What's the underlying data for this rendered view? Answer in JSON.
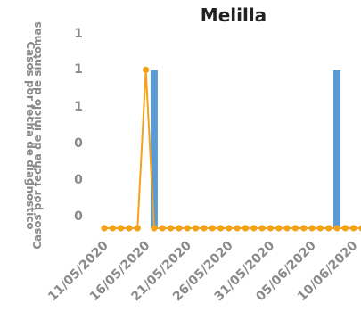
{
  "chart_data": {
    "type": "bar+line",
    "title": "Melilla",
    "ylabel_left": "Casos por fecha de diagnóstico",
    "ylabel_right": "Casos por fecha de inicio de síntomas",
    "y_tick_labels": [
      "1",
      "1",
      "1",
      "0",
      "0",
      "0"
    ],
    "ylim": [
      0,
      1.25
    ],
    "x_tick_labels": [
      "11/05/2020",
      "16/05/2020",
      "21/05/2020",
      "26/05/2020",
      "31/05/2020",
      "05/06/2020",
      "10/06/2020"
    ],
    "x_range": [
      "11/05/2020",
      "11/06/2020"
    ],
    "series": [
      {
        "chart_type": "bar",
        "color": "#5b9bd5",
        "points": [
          {
            "x": "17/05/2020",
            "y": 1
          },
          {
            "x": "08/06/2020",
            "y": 1
          }
        ]
      },
      {
        "chart_type": "line",
        "color": "#f4a21a",
        "marker": "circle",
        "points": [
          {
            "x": "11/05/2020",
            "y": 0
          },
          {
            "x": "12/05/2020",
            "y": 0
          },
          {
            "x": "13/05/2020",
            "y": 0
          },
          {
            "x": "14/05/2020",
            "y": 0
          },
          {
            "x": "15/05/2020",
            "y": 0
          },
          {
            "x": "16/05/2020",
            "y": 1
          },
          {
            "x": "17/05/2020",
            "y": 0
          },
          {
            "x": "18/05/2020",
            "y": 0
          },
          {
            "x": "19/05/2020",
            "y": 0
          },
          {
            "x": "20/05/2020",
            "y": 0
          },
          {
            "x": "21/05/2020",
            "y": 0
          },
          {
            "x": "22/05/2020",
            "y": 0
          },
          {
            "x": "23/05/2020",
            "y": 0
          },
          {
            "x": "24/05/2020",
            "y": 0
          },
          {
            "x": "25/05/2020",
            "y": 0
          },
          {
            "x": "26/05/2020",
            "y": 0
          },
          {
            "x": "27/05/2020",
            "y": 0
          },
          {
            "x": "28/05/2020",
            "y": 0
          },
          {
            "x": "29/05/2020",
            "y": 0
          },
          {
            "x": "30/05/2020",
            "y": 0
          },
          {
            "x": "31/05/2020",
            "y": 0
          },
          {
            "x": "01/06/2020",
            "y": 0
          },
          {
            "x": "02/06/2020",
            "y": 0
          },
          {
            "x": "03/06/2020",
            "y": 0
          },
          {
            "x": "04/06/2020",
            "y": 0
          },
          {
            "x": "05/06/2020",
            "y": 0
          },
          {
            "x": "06/06/2020",
            "y": 0
          },
          {
            "x": "07/06/2020",
            "y": 0
          },
          {
            "x": "08/06/2020",
            "y": 0
          },
          {
            "x": "09/06/2020",
            "y": 0
          },
          {
            "x": "10/06/2020",
            "y": 0
          },
          {
            "x": "11/06/2020",
            "y": 0
          }
        ]
      }
    ],
    "grid": false,
    "legend": "none"
  }
}
